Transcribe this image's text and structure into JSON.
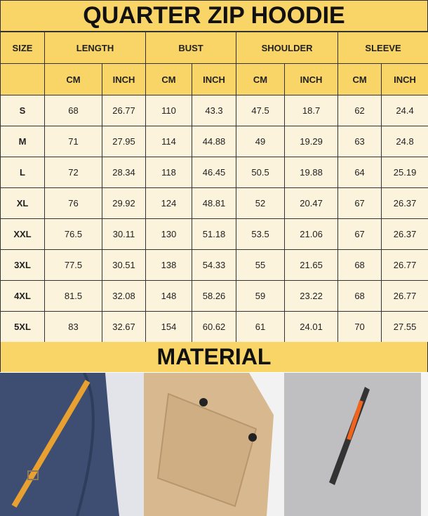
{
  "title": "QUARTER ZIP HOODIE",
  "headers": {
    "size": "SIZE",
    "groups": [
      "LENGTH",
      "BUST",
      "SHOULDER",
      "SLEEVE"
    ],
    "units": [
      "CM",
      "INCH",
      "CM",
      "INCH",
      "CM",
      "INCH",
      "CM",
      "INCH"
    ]
  },
  "rows": [
    [
      "S",
      "68",
      "26.77",
      "110",
      "43.3",
      "47.5",
      "18.7",
      "62",
      "24.4"
    ],
    [
      "M",
      "71",
      "27.95",
      "114",
      "44.88",
      "49",
      "19.29",
      "63",
      "24.8"
    ],
    [
      "L",
      "72",
      "28.34",
      "118",
      "46.45",
      "50.5",
      "19.88",
      "64",
      "25.19"
    ],
    [
      "XL",
      "76",
      "29.92",
      "124",
      "48.81",
      "52",
      "20.47",
      "67",
      "26.37"
    ],
    [
      "XXL",
      "76.5",
      "30.11",
      "130",
      "51.18",
      "53.5",
      "21.06",
      "67",
      "26.37"
    ],
    [
      "3XL",
      "77.5",
      "30.51",
      "138",
      "54.33",
      "55",
      "21.65",
      "68",
      "26.77"
    ],
    [
      "4XL",
      "81.5",
      "32.08",
      "148",
      "58.26",
      "59",
      "23.22",
      "68",
      "26.77"
    ],
    [
      "5XL",
      "83",
      "32.67",
      "154",
      "60.62",
      "61",
      "24.01",
      "70",
      "27.55"
    ]
  ],
  "material": "MATERIAL",
  "colors": {
    "header": "#f9d466",
    "row": "#fcf3dc",
    "navy": "#3d4e72",
    "khaki": "#d8b88f",
    "gray": "#bfbfc1",
    "accent": "#e8a030"
  }
}
